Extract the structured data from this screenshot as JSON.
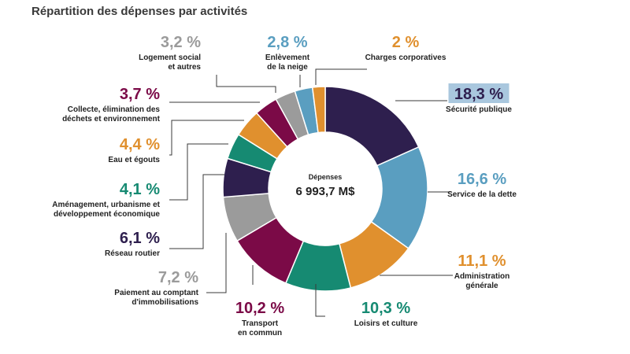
{
  "title": "Répartition des dépenses par activités",
  "chart_data": {
    "type": "pie",
    "donut": true,
    "center_label": "Dépenses",
    "center_value": "6 993,7 M$",
    "slices": [
      {
        "pct_label": "18,3 %",
        "value": 18.3,
        "label": [
          "Sécurité publique"
        ],
        "color": "#2e1f4e",
        "highlight": "#a9c7de"
      },
      {
        "pct_label": "16,6 %",
        "value": 16.6,
        "label": [
          "Service de la dette"
        ],
        "color": "#5a9ec0"
      },
      {
        "pct_label": "11,1 %",
        "value": 11.1,
        "label": [
          "Administration",
          "générale"
        ],
        "color": "#e0902e"
      },
      {
        "pct_label": "10,3 %",
        "value": 10.3,
        "label": [
          "Loisirs et culture"
        ],
        "color": "#168a72"
      },
      {
        "pct_label": "10,2 %",
        "value": 10.2,
        "label": [
          "Transport",
          "en commun"
        ],
        "color": "#7b0a47"
      },
      {
        "pct_label": "7,2 %",
        "value": 7.2,
        "label": [
          "Paiement au comptant",
          "d'immobilisations"
        ],
        "color": "#9b9b9b"
      },
      {
        "pct_label": "6,1 %",
        "value": 6.1,
        "label": [
          "Réseau routier"
        ],
        "color": "#2e1f4e"
      },
      {
        "pct_label": "4,1 %",
        "value": 4.1,
        "label": [
          "Aménagement, urbanisme et",
          "développement économique"
        ],
        "color": "#168a72"
      },
      {
        "pct_label": "4,4 %",
        "value": 4.4,
        "label": [
          "Eau et égouts"
        ],
        "color": "#e0902e"
      },
      {
        "pct_label": "3,7 %",
        "value": 3.7,
        "label": [
          "Collecte, élimination des",
          "déchets et environnement"
        ],
        "color": "#7b0a47"
      },
      {
        "pct_label": "3,2 %",
        "value": 3.2,
        "label": [
          "Logement social",
          "et autres"
        ],
        "color": "#9b9b9b"
      },
      {
        "pct_label": "2,8 %",
        "value": 2.8,
        "label": [
          "Enlèvement",
          "de la neige"
        ],
        "color": "#5a9ec0"
      },
      {
        "pct_label": "2 %",
        "value": 2,
        "label": [
          "Charges corporatives"
        ],
        "color": "#e0902e"
      }
    ]
  }
}
